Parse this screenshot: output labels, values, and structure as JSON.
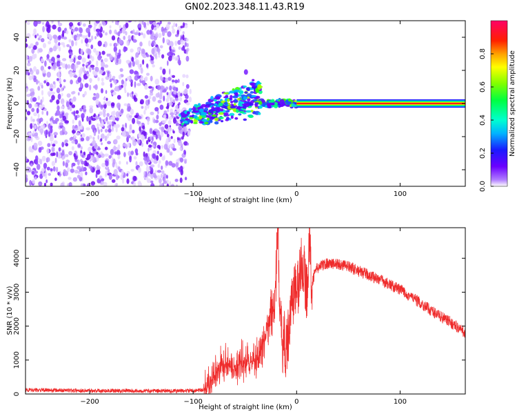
{
  "title": "GN02.2023.348.11.43.R19",
  "colors": {
    "snr_line": "#ef2b2b",
    "spectrogram_low": "#b07cff",
    "spectrogram_high": "#ff0055",
    "frame": "#000000"
  },
  "chart_data": [
    {
      "type": "heatmap",
      "panel": "spectrogram",
      "xlabel": "Height of straight line (km)",
      "ylabel": "Frequency (Hz)",
      "xlim": [
        -262,
        163
      ],
      "ylim": [
        -50,
        50
      ],
      "x_ticks": [
        -200,
        -100,
        0,
        100
      ],
      "y_ticks": [
        -40,
        -20,
        0,
        20,
        40
      ],
      "grid": false,
      "colorbar": {
        "label": "Normalized spectral amplitude",
        "range": [
          0,
          1
        ],
        "ticks": [
          0.0,
          0.2,
          0.4,
          0.6,
          0.8
        ],
        "colormap": "gist_rainbow (purple → blue → cyan → green → yellow → red → pink)"
      },
      "regions": [
        {
          "x_range": [
            -262,
            -105
          ],
          "freq_range": [
            -50,
            50
          ],
          "amplitude": 0.05,
          "description": "noise speckle"
        },
        {
          "x_range": [
            -110,
            -35
          ],
          "freq_range": [
            -20,
            15
          ],
          "amplitude": 0.3,
          "description": "broadening band sloping upward"
        },
        {
          "x_range": [
            -35,
            0
          ],
          "freq_range": [
            -5,
            5
          ],
          "amplitude": 0.45,
          "description": "narrowing band"
        },
        {
          "x_range": [
            0,
            163
          ],
          "freq_range": [
            -2,
            2
          ],
          "amplitude": 1.0,
          "description": "steady tone at 0 Hz"
        }
      ]
    },
    {
      "type": "line",
      "panel": "snr",
      "xlabel": "Height of straight line (km)",
      "ylabel": "SNR (10 * v/v)",
      "xlim": [
        -262,
        163
      ],
      "ylim": [
        0,
        4900
      ],
      "x_ticks": [
        -200,
        -100,
        0,
        100
      ],
      "y_ticks": [
        0,
        1000,
        2000,
        3000,
        4000
      ],
      "grid": false,
      "series": [
        {
          "x": [
            -262,
            -240,
            -200,
            -160,
            -120,
            -100,
            -90,
            -85,
            -80,
            -75,
            -70,
            -65,
            -60,
            -55,
            -50,
            -45,
            -40,
            -35,
            -30,
            -25,
            -22,
            -20,
            -18,
            -16,
            -14,
            -12,
            -10,
            -8,
            -6,
            -4,
            -2,
            0,
            2,
            5,
            8,
            10,
            12,
            14,
            15,
            16,
            18,
            20,
            25,
            30,
            40,
            50,
            60,
            70,
            80,
            90,
            100,
            110,
            120,
            130,
            140,
            150,
            163
          ],
          "y": [
            120,
            110,
            100,
            95,
            90,
            95,
            120,
            250,
            500,
            800,
            900,
            850,
            700,
            950,
            1000,
            900,
            1000,
            1200,
            1700,
            2400,
            2800,
            3300,
            4850,
            2300,
            1500,
            1600,
            1200,
            1800,
            2400,
            2900,
            3000,
            3100,
            3200,
            4000,
            3400,
            2900,
            4700,
            3500,
            3300,
            3400,
            3650,
            3700,
            3800,
            3850,
            3830,
            3750,
            3620,
            3500,
            3380,
            3220,
            3070,
            2880,
            2670,
            2460,
            2270,
            2080,
            1800
          ],
          "noise_amplitude": 180
        }
      ]
    }
  ]
}
